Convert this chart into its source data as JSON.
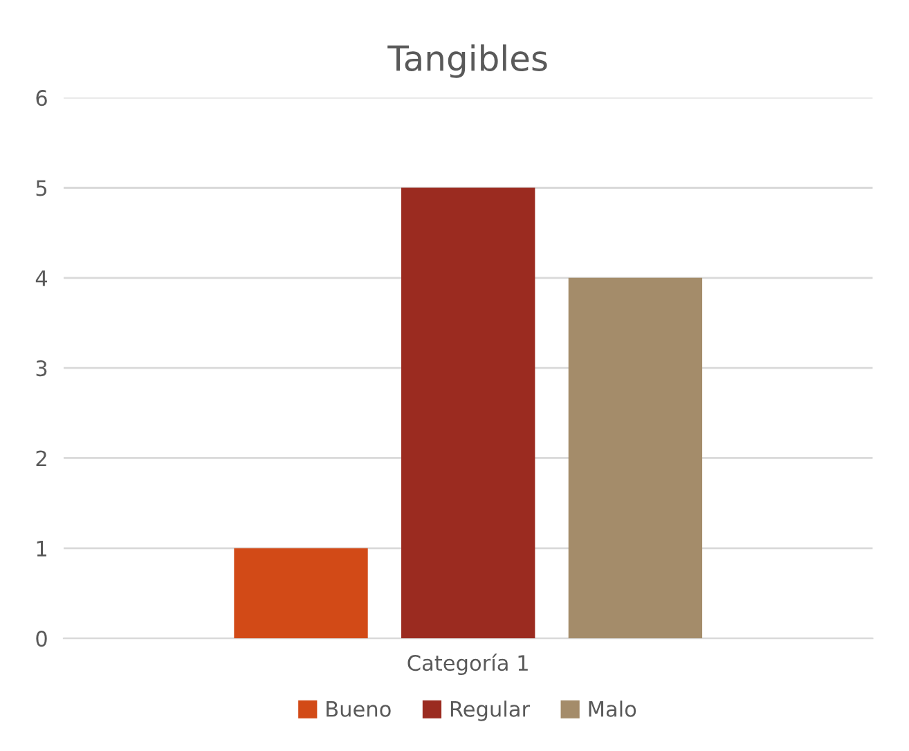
{
  "chart_data": {
    "type": "bar",
    "title": "Tangibles",
    "categories": [
      "Categoría 1"
    ],
    "series": [
      {
        "name": "Bueno",
        "color": "#d24a17",
        "values": [
          1
        ]
      },
      {
        "name": "Regular",
        "color": "#9b2b20",
        "values": [
          5
        ]
      },
      {
        "name": "Malo",
        "color": "#a48c6a",
        "values": [
          4
        ]
      }
    ],
    "ylim": [
      0,
      6
    ],
    "yticks": [
      0,
      1,
      2,
      3,
      4,
      5,
      6
    ],
    "grid": "y",
    "legend": "bottom"
  }
}
